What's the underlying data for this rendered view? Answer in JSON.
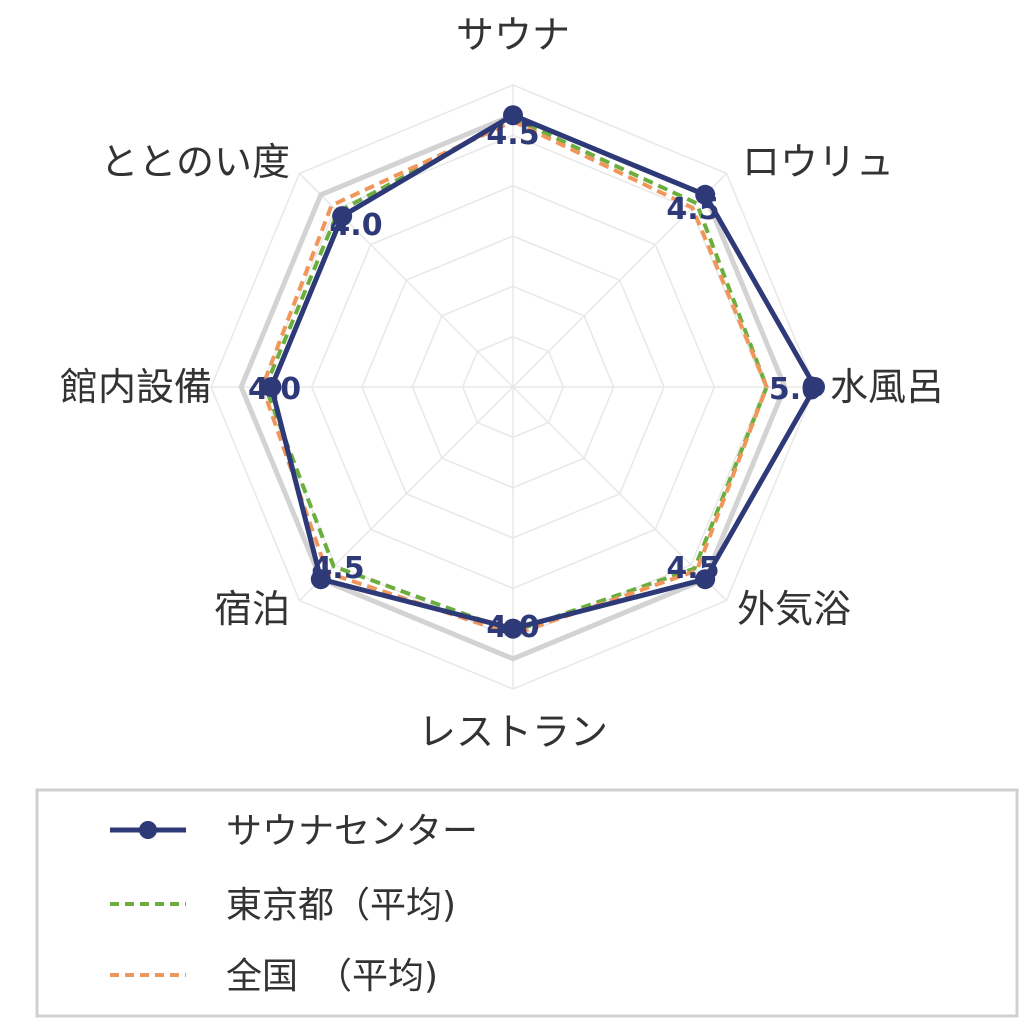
{
  "chart_data": {
    "type": "radar",
    "axes": [
      "サウナ",
      "ロウリュ",
      "水風呂",
      "外気浴",
      "レストラン",
      "宿泊",
      "館内設備",
      "ととのい度"
    ],
    "value_labels": [
      "4.5",
      "4.5",
      "5.0",
      "4.5",
      "4.0",
      "4.5",
      "4.0",
      "4.0"
    ],
    "rmax": 5.0,
    "grid_levels": 6,
    "highlight_level": 4.5,
    "series": [
      {
        "name": "サウナセンター",
        "values": [
          4.5,
          4.5,
          5.0,
          4.5,
          4.0,
          4.5,
          4.0,
          4.0
        ],
        "color": "#2e3a78",
        "style": "solid-markers"
      },
      {
        "name": "東京都（平均)",
        "values": [
          4.45,
          4.3,
          4.2,
          4.25,
          4.05,
          4.2,
          4.1,
          4.1
        ],
        "color": "#6aaf3d",
        "style": "dashed"
      },
      {
        "name": "全国　（平均)",
        "values": [
          4.4,
          4.2,
          4.2,
          4.3,
          4.1,
          4.35,
          4.15,
          4.25
        ],
        "color": "#f0965a",
        "style": "dashed"
      }
    ],
    "legend_position": "bottom"
  },
  "colors": {
    "grid": "#e8e8e8",
    "highlight_ring": "#d3d3d3",
    "value_label": "#2e3a78",
    "legend_border": "#d0d0d0"
  }
}
